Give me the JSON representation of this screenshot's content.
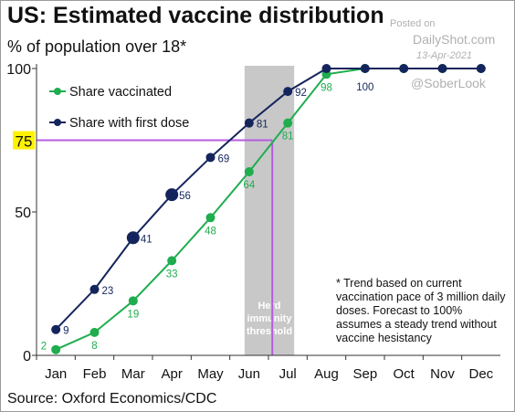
{
  "title": "US: Estimated vaccine distribution",
  "subtitle": "% of population over 18*",
  "source": "Source: Oxford Economics/CDC",
  "watermark": {
    "posted": "Posted on",
    "site": "DailyShot.com",
    "date": "13-Apr-2021",
    "handle": "@SoberLook"
  },
  "footnote": "* Trend based on current vaccination pace of 3 million daily doses. Forecast to 100% assumes a steady trend without vaccine hesistancy",
  "chart_data": {
    "type": "line",
    "categories": [
      "Jan",
      "Feb",
      "Mar",
      "Apr",
      "May",
      "Jun",
      "Jul",
      "Aug",
      "Sep",
      "Oct",
      "Nov",
      "Dec"
    ],
    "ylim": [
      0,
      100
    ],
    "y_ticks": [
      "0",
      "50",
      "100"
    ],
    "threshold": {
      "value": 75,
      "label": "75",
      "color": "#b45be0"
    },
    "herd_band": {
      "from": "Jun",
      "to": "Jul",
      "label": "Herd immunity threshold",
      "color": "#c8c8c8"
    },
    "legend_position": "top-left",
    "series": [
      {
        "name": "Share vaccinated",
        "color": "#1fad4e",
        "values": [
          2,
          8,
          19,
          33,
          48,
          64,
          81,
          98,
          100,
          100,
          100,
          100
        ],
        "labels": [
          "2",
          "8",
          "19",
          "33",
          "48",
          "64",
          "81",
          "98",
          "",
          "",
          "",
          ""
        ]
      },
      {
        "name": "Share with first dose",
        "color": "#14245c",
        "values": [
          9,
          23,
          41,
          56,
          69,
          81,
          92,
          100,
          100,
          100,
          100,
          100
        ],
        "labels": [
          "9",
          "23",
          "41",
          "56",
          "69",
          "81",
          "92",
          "",
          "100",
          "",
          "",
          ""
        ]
      }
    ]
  }
}
